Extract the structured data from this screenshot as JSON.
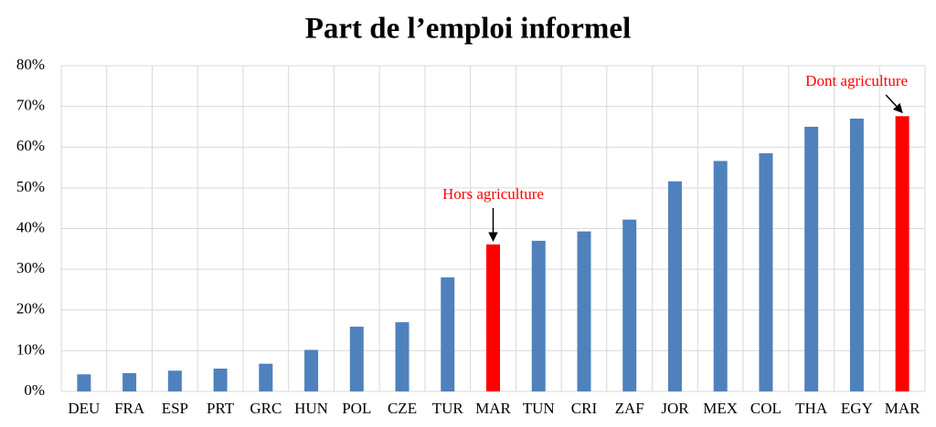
{
  "chart_data": {
    "type": "bar",
    "title": "Part de l’emploi informel",
    "categories": [
      "DEU",
      "FRA",
      "ESP",
      "PRT",
      "GRC",
      "HUN",
      "POL",
      "CZE",
      "TUR",
      "MAR",
      "TUN",
      "CRI",
      "ZAF",
      "JOR",
      "MEX",
      "COL",
      "THA",
      "EGY",
      "MAR"
    ],
    "values": [
      4.2,
      4.5,
      5.1,
      5.6,
      6.8,
      10.2,
      15.9,
      17.0,
      28.0,
      36.1,
      37.0,
      39.3,
      42.2,
      51.6,
      56.6,
      58.5,
      65.0,
      67.0,
      67.6
    ],
    "colors": [
      "#4f81bd",
      "#4f81bd",
      "#4f81bd",
      "#4f81bd",
      "#4f81bd",
      "#4f81bd",
      "#4f81bd",
      "#4f81bd",
      "#4f81bd",
      "#ff0000",
      "#4f81bd",
      "#4f81bd",
      "#4f81bd",
      "#4f81bd",
      "#4f81bd",
      "#4f81bd",
      "#4f81bd",
      "#4f81bd",
      "#ff0000"
    ],
    "ylim": [
      0,
      80
    ],
    "yticks": [
      {
        "value": 0,
        "label": "0%"
      },
      {
        "value": 10,
        "label": "10%"
      },
      {
        "value": 20,
        "label": "20%"
      },
      {
        "value": 30,
        "label": "30%"
      },
      {
        "value": 40,
        "label": "40%"
      },
      {
        "value": 50,
        "label": "50%"
      },
      {
        "value": 60,
        "label": "60%"
      },
      {
        "value": 70,
        "label": "70%"
      },
      {
        "value": 80,
        "label": "80%"
      }
    ],
    "grid": true,
    "annotations": [
      {
        "text": "Hors agriculture",
        "color": "#ff0000"
      },
      {
        "text": "Dont agriculture",
        "color": "#ff0000"
      }
    ]
  }
}
